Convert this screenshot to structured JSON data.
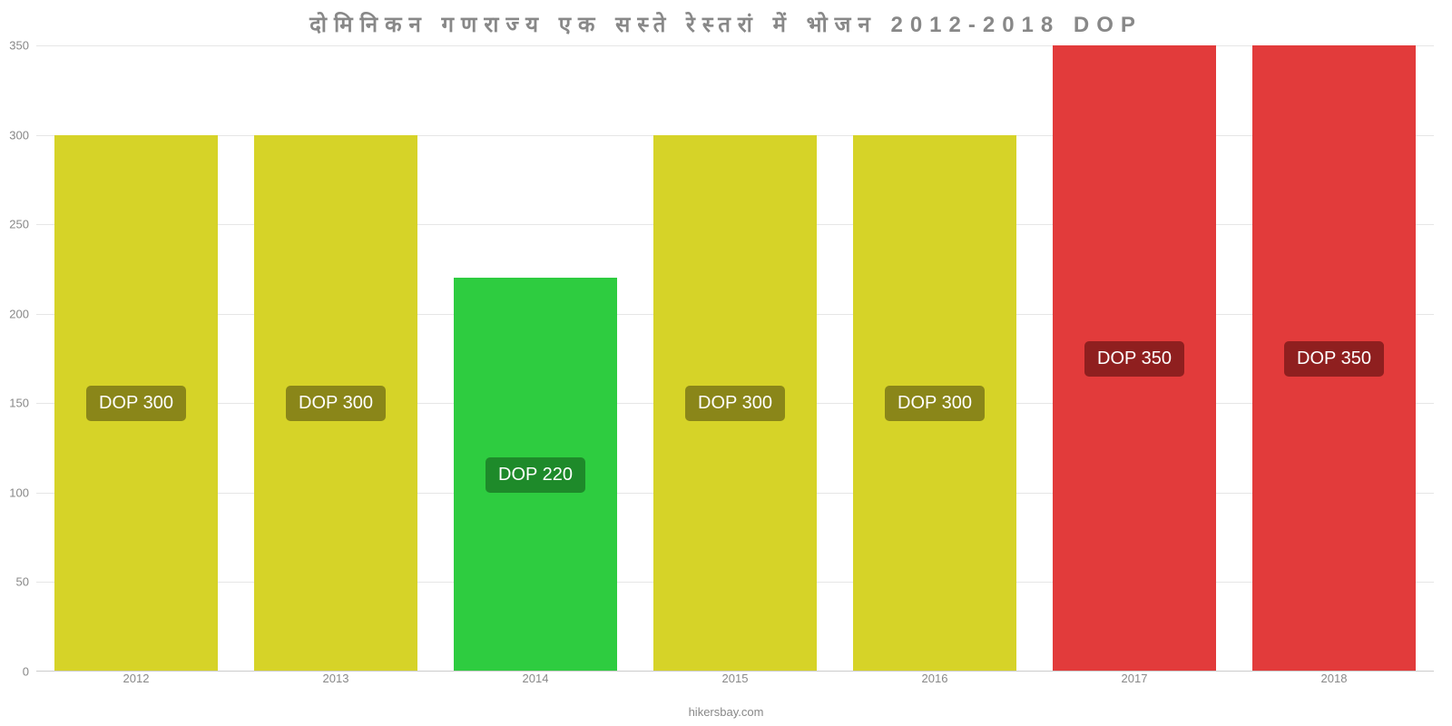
{
  "chart": {
    "type": "bar",
    "title": "दोमिनिकन गणराज्य एक सस्ते रेस्तरां में भोजन 2012-2018 DOP",
    "title_fontsize": 24,
    "title_color": "#888888",
    "attribution": "hikersbay.com",
    "background_color": "#ffffff",
    "grid_color": "#e6e6e6",
    "axis_text_color": "#888888",
    "ylim": [
      0,
      350
    ],
    "ytick_step": 50,
    "yticks": [
      0,
      50,
      100,
      150,
      200,
      250,
      300,
      350
    ],
    "categories": [
      "2012",
      "2013",
      "2014",
      "2015",
      "2016",
      "2017",
      "2018"
    ],
    "values": [
      300,
      300,
      220,
      300,
      300,
      350,
      350
    ],
    "bar_colors": [
      "#d6d328",
      "#d6d328",
      "#2ecc40",
      "#d6d328",
      "#d6d328",
      "#e23b3b",
      "#e23b3b"
    ],
    "value_labels": [
      "DOP 300",
      "DOP 300",
      "DOP 220",
      "DOP 300",
      "DOP 300",
      "DOP 350",
      "DOP 350"
    ],
    "value_label_bg": [
      "#8a8619",
      "#8a8619",
      "#1e8a2a",
      "#8a8619",
      "#8a8619",
      "#8f1f1f",
      "#8f1f1f"
    ],
    "value_label_color": "#ffffff",
    "value_label_fontsize": 20,
    "tick_label_fontsize": 13,
    "bar_width": 0.82
  }
}
